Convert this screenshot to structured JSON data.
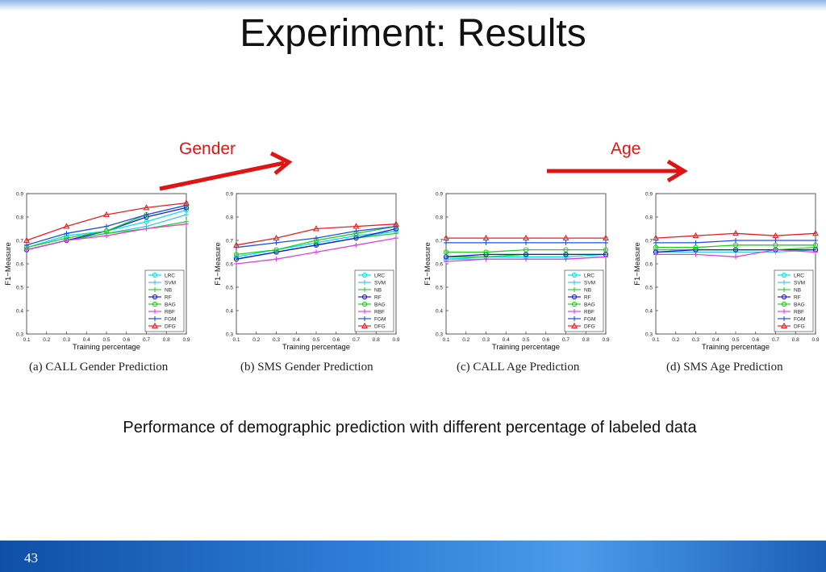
{
  "slide": {
    "title": "Experiment: Results",
    "gender_label": "Gender",
    "age_label": "Age",
    "figure_caption": "Performance of demographic prediction with different percentage of labeled data",
    "page_number": "43",
    "accent_color": "#e01414"
  },
  "legend_order": [
    "LRC",
    "SVM",
    "NB",
    "RF",
    "BAG",
    "RBF",
    "FGM",
    "DFG"
  ],
  "series_styles": {
    "LRC": {
      "color": "#00e5ee",
      "marker": "circle"
    },
    "SVM": {
      "color": "#3cc8e6",
      "marker": "plus"
    },
    "NB": {
      "color": "#2bd12b",
      "marker": "plus"
    },
    "RF": {
      "color": "#1a1ad6",
      "marker": "circle"
    },
    "BAG": {
      "color": "#22cc22",
      "marker": "circle"
    },
    "RBF": {
      "color": "#e040e0",
      "marker": "plus"
    },
    "FGM": {
      "color": "#2050e0",
      "marker": "plus"
    },
    "DFG": {
      "color": "#e82020",
      "marker": "triangle"
    }
  },
  "chart_data": [
    {
      "type": "line",
      "caption_letter": "(a)",
      "caption_text": "CALL Gender Prediction",
      "xlabel": "Training percentage",
      "ylabel": "F1−Measure",
      "xlim": [
        0.1,
        0.9
      ],
      "ylim": [
        0.3,
        0.9
      ],
      "xticks": [
        "0.1",
        "0.2",
        "0.3",
        "0.4",
        "0.5",
        "0.6",
        "0.7",
        "0.8",
        "0.9"
      ],
      "yticks": [
        "0.3",
        "0.4",
        "0.5",
        "0.6",
        "0.7",
        "0.8",
        "0.9"
      ],
      "legend_position": "bottom-right",
      "x": [
        0.1,
        0.3,
        0.5,
        0.7,
        0.9
      ],
      "series": [
        {
          "name": "LRC",
          "values": [
            0.67,
            0.72,
            0.74,
            0.78,
            0.83
          ]
        },
        {
          "name": "SVM",
          "values": [
            0.66,
            0.7,
            0.73,
            0.76,
            0.81
          ]
        },
        {
          "name": "NB",
          "values": [
            0.66,
            0.7,
            0.73,
            0.75,
            0.78
          ]
        },
        {
          "name": "RF",
          "values": [
            0.66,
            0.7,
            0.74,
            0.8,
            0.84
          ]
        },
        {
          "name": "BAG",
          "values": [
            0.67,
            0.71,
            0.74,
            0.81,
            0.85
          ]
        },
        {
          "name": "RBF",
          "values": [
            0.66,
            0.7,
            0.72,
            0.75,
            0.77
          ]
        },
        {
          "name": "FGM",
          "values": [
            0.68,
            0.73,
            0.76,
            0.81,
            0.85
          ]
        },
        {
          "name": "DFG",
          "values": [
            0.7,
            0.76,
            0.81,
            0.84,
            0.86
          ]
        }
      ]
    },
    {
      "type": "line",
      "caption_letter": "(b)",
      "caption_text": "SMS Gender Prediction",
      "xlabel": "Training percentage",
      "ylabel": "F1−Measure",
      "xlim": [
        0.1,
        0.9
      ],
      "ylim": [
        0.3,
        0.9
      ],
      "xticks": [
        "0.1",
        "0.2",
        "0.3",
        "0.4",
        "0.5",
        "0.6",
        "0.7",
        "0.8",
        "0.9"
      ],
      "yticks": [
        "0.3",
        "0.4",
        "0.5",
        "0.6",
        "0.7",
        "0.8",
        "0.9"
      ],
      "legend_position": "bottom-right",
      "x": [
        0.1,
        0.3,
        0.5,
        0.7,
        0.9
      ],
      "series": [
        {
          "name": "LRC",
          "values": [
            0.63,
            0.66,
            0.69,
            0.72,
            0.74
          ]
        },
        {
          "name": "SVM",
          "values": [
            0.62,
            0.65,
            0.68,
            0.71,
            0.74
          ]
        },
        {
          "name": "NB",
          "values": [
            0.62,
            0.65,
            0.68,
            0.71,
            0.73
          ]
        },
        {
          "name": "RF",
          "values": [
            0.62,
            0.65,
            0.68,
            0.71,
            0.75
          ]
        },
        {
          "name": "BAG",
          "values": [
            0.64,
            0.66,
            0.7,
            0.73,
            0.76
          ]
        },
        {
          "name": "RBF",
          "values": [
            0.6,
            0.62,
            0.65,
            0.68,
            0.71
          ]
        },
        {
          "name": "FGM",
          "values": [
            0.67,
            0.69,
            0.71,
            0.74,
            0.76
          ]
        },
        {
          "name": "DFG",
          "values": [
            0.68,
            0.71,
            0.75,
            0.76,
            0.77
          ]
        }
      ]
    },
    {
      "type": "line",
      "caption_letter": "(c)",
      "caption_text": "CALL Age Prediction",
      "xlabel": "Training percentage",
      "ylabel": "F1−Measure",
      "xlim": [
        0.1,
        0.9
      ],
      "ylim": [
        0.3,
        0.9
      ],
      "xticks": [
        "0.1",
        "0.2",
        "0.3",
        "0.4",
        "0.5",
        "0.6",
        "0.7",
        "0.8",
        "0.9"
      ],
      "yticks": [
        "0.3",
        "0.4",
        "0.5",
        "0.6",
        "0.7",
        "0.8",
        "0.9"
      ],
      "legend_position": "bottom-right",
      "x": [
        0.1,
        0.3,
        0.5,
        0.7,
        0.9
      ],
      "series": [
        {
          "name": "LRC",
          "values": [
            0.62,
            0.63,
            0.63,
            0.63,
            0.64
          ]
        },
        {
          "name": "SVM",
          "values": [
            0.62,
            0.62,
            0.62,
            0.62,
            0.63
          ]
        },
        {
          "name": "NB",
          "values": [
            0.63,
            0.63,
            0.64,
            0.64,
            0.64
          ]
        },
        {
          "name": "RF",
          "values": [
            0.63,
            0.64,
            0.64,
            0.64,
            0.64
          ]
        },
        {
          "name": "BAG",
          "values": [
            0.65,
            0.65,
            0.66,
            0.66,
            0.66
          ]
        },
        {
          "name": "RBF",
          "values": [
            0.61,
            0.62,
            0.62,
            0.62,
            0.63
          ]
        },
        {
          "name": "FGM",
          "values": [
            0.69,
            0.69,
            0.69,
            0.69,
            0.69
          ]
        },
        {
          "name": "DFG",
          "values": [
            0.71,
            0.71,
            0.71,
            0.71,
            0.71
          ]
        }
      ]
    },
    {
      "type": "line",
      "caption_letter": "(d)",
      "caption_text": "SMS Age Prediction",
      "xlabel": "Training percentage",
      "ylabel": "F1−Measure",
      "xlim": [
        0.1,
        0.9
      ],
      "ylim": [
        0.3,
        0.9
      ],
      "xticks": [
        "0.1",
        "0.2",
        "0.3",
        "0.4",
        "0.5",
        "0.6",
        "0.7",
        "0.8",
        "0.9"
      ],
      "yticks": [
        "0.3",
        "0.4",
        "0.5",
        "0.6",
        "0.7",
        "0.8",
        "0.9"
      ],
      "legend_position": "bottom-right",
      "x": [
        0.1,
        0.3,
        0.5,
        0.7,
        0.9
      ],
      "series": [
        {
          "name": "LRC",
          "values": [
            0.65,
            0.66,
            0.66,
            0.66,
            0.66
          ]
        },
        {
          "name": "SVM",
          "values": [
            0.65,
            0.65,
            0.65,
            0.65,
            0.66
          ]
        },
        {
          "name": "NB",
          "values": [
            0.66,
            0.66,
            0.66,
            0.66,
            0.67
          ]
        },
        {
          "name": "RF",
          "values": [
            0.65,
            0.66,
            0.66,
            0.66,
            0.66
          ]
        },
        {
          "name": "BAG",
          "values": [
            0.67,
            0.67,
            0.68,
            0.68,
            0.68
          ]
        },
        {
          "name": "RBF",
          "values": [
            0.64,
            0.64,
            0.63,
            0.66,
            0.65
          ]
        },
        {
          "name": "FGM",
          "values": [
            0.69,
            0.69,
            0.7,
            0.7,
            0.7
          ]
        },
        {
          "name": "DFG",
          "values": [
            0.71,
            0.72,
            0.73,
            0.72,
            0.73
          ]
        }
      ]
    }
  ]
}
